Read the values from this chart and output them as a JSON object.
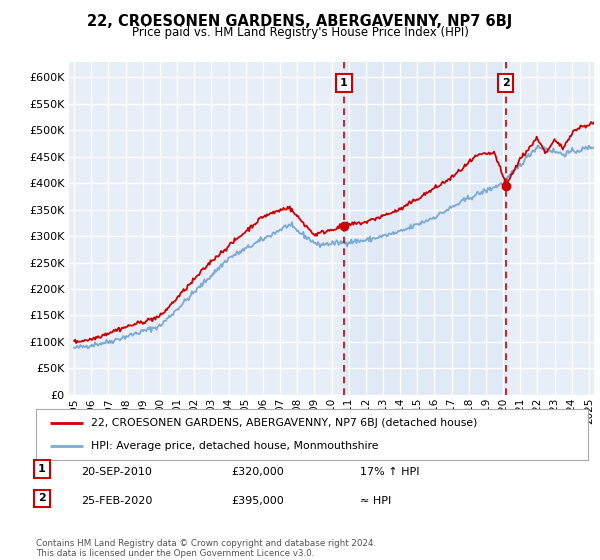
{
  "title": "22, CROESONEN GARDENS, ABERGAVENNY, NP7 6BJ",
  "subtitle": "Price paid vs. HM Land Registry's House Price Index (HPI)",
  "ylabel_ticks": [
    "£0",
    "£50K",
    "£100K",
    "£150K",
    "£200K",
    "£250K",
    "£300K",
    "£350K",
    "£400K",
    "£450K",
    "£500K",
    "£550K",
    "£600K"
  ],
  "ytick_values": [
    0,
    50000,
    100000,
    150000,
    200000,
    250000,
    300000,
    350000,
    400000,
    450000,
    500000,
    550000,
    600000
  ],
  "ylim": [
    0,
    630000
  ],
  "xlim_start": 1994.7,
  "xlim_end": 2025.3,
  "xtick_years": [
    1995,
    1996,
    1997,
    1998,
    1999,
    2000,
    2001,
    2002,
    2003,
    2004,
    2005,
    2006,
    2007,
    2008,
    2009,
    2010,
    2011,
    2012,
    2013,
    2014,
    2015,
    2016,
    2017,
    2018,
    2019,
    2020,
    2021,
    2022,
    2023,
    2024,
    2025
  ],
  "background_color": "#ffffff",
  "plot_bg_color": "#e8eef8",
  "plot_bg_shaded": "#dce6f5",
  "grid_color": "#ffffff",
  "hpi_color": "#7baad4",
  "price_color": "#cc0000",
  "marker1_x": 2010.72,
  "marker1_y": 320000,
  "marker2_x": 2020.15,
  "marker2_y": 395000,
  "vline1_x": 2010.72,
  "vline2_x": 2020.15,
  "vline_color": "#cc0000",
  "legend_line1": "22, CROESONEN GARDENS, ABERGAVENNY, NP7 6BJ (detached house)",
  "legend_line2": "HPI: Average price, detached house, Monmouthshire",
  "note1_label": "1",
  "note1_date": "20-SEP-2010",
  "note1_price": "£320,000",
  "note1_change": "17% ↑ HPI",
  "note2_label": "2",
  "note2_date": "25-FEB-2020",
  "note2_price": "£395,000",
  "note2_change": "≈ HPI",
  "footer": "Contains HM Land Registry data © Crown copyright and database right 2024.\nThis data is licensed under the Open Government Licence v3.0."
}
